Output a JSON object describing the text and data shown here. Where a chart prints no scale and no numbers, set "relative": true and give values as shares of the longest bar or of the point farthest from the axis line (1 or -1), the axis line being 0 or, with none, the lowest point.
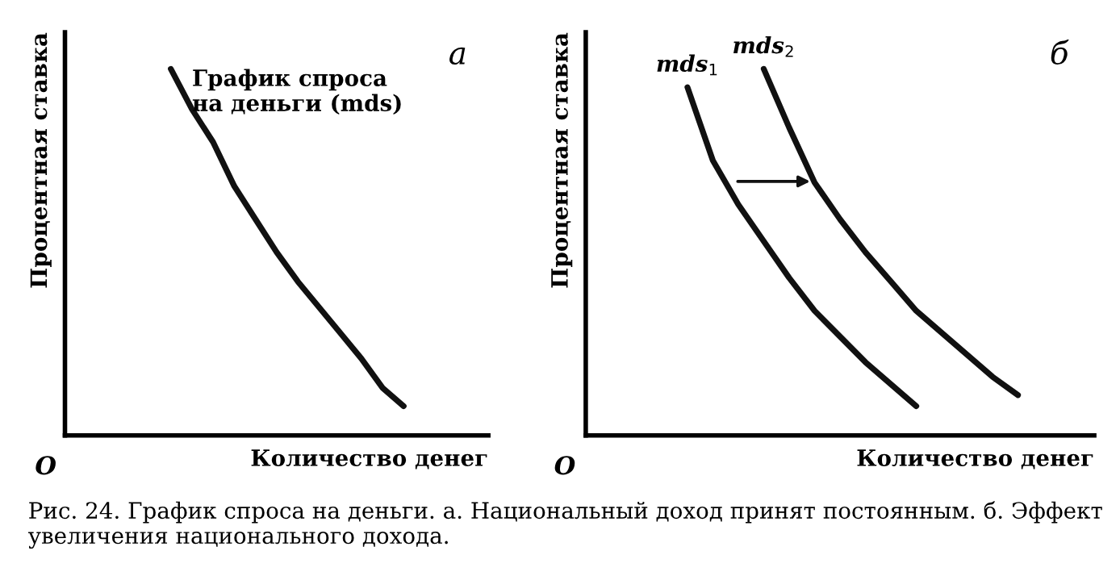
{
  "chart_data": [
    {
      "type": "line",
      "title": "а",
      "xlabel": "Количество денег",
      "ylabel": "Процентная ставка",
      "relative": true,
      "legend": false,
      "categories": [
        null,
        null,
        null,
        null,
        null,
        null,
        null,
        null,
        null,
        null,
        null,
        null,
        null,
        null,
        null,
        null,
        null,
        null,
        null,
        null,
        null
      ],
      "series": [
        {
          "name": "График спроса\nна деньги (mds)",
          "color": "#111111",
          "values": [
            null,
            null,
            null,
            null,
            null,
            1,
            0.89,
            0.8,
            0.68,
            0.59,
            0.5,
            0.42,
            0.35,
            0.28,
            0.21,
            0.13,
            0.08,
            null,
            null,
            null,
            null
          ]
        }
      ],
      "annotations": [
        "O",
        "Рис. 24. График спроса на деньги. а. Национальный доход принят постоянным. б. Эффект увеличения национального дохода."
      ]
    },
    {
      "type": "line",
      "title": "б",
      "xlabel": "Количество денег",
      "ylabel": "Процентная ставка",
      "relative": true,
      "legend": false,
      "categories": [
        null,
        null,
        null,
        null,
        null,
        null,
        null,
        null,
        null,
        null,
        null,
        null,
        null,
        null,
        null,
        null,
        null,
        null,
        null,
        null,
        null
      ],
      "series": [
        {
          "name": "mds$_{1}$",
          "color": "#111111",
          "values": [
            null,
            null,
            null,
            null,
            0.95,
            0.75,
            0.63,
            0.53,
            0.43,
            0.34,
            0.27,
            0.2,
            0.14,
            0.08,
            null,
            null,
            null,
            null,
            null,
            null,
            null
          ]
        },
        {
          "name": "mds$_{2}$",
          "color": "#111111",
          "values": [
            null,
            null,
            null,
            null,
            null,
            null,
            null,
            1,
            0.84,
            0.69,
            0.59,
            0.5,
            0.42,
            0.34,
            0.28,
            0.22,
            0.16,
            0.11,
            null,
            null,
            null
          ]
        }
      ],
      "annotations": [
        "O"
      ]
    }
  ]
}
